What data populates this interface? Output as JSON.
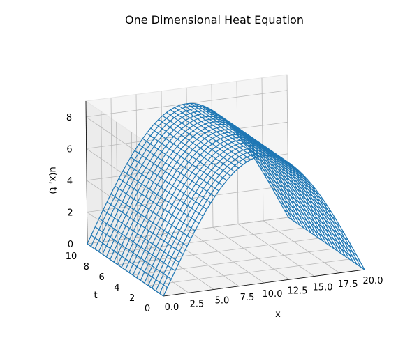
{
  "chart_data": {
    "type": "wireframe",
    "title": "One Dimensional Heat Equation",
    "xlabel": "x",
    "ylabel": "t",
    "zlabel": "u(x, t)",
    "xlim": [
      0,
      20
    ],
    "ylim": [
      0,
      10
    ],
    "zlim": [
      0,
      9
    ],
    "xticks": [
      "0.0",
      "2.5",
      "5.0",
      "7.5",
      "10.0",
      "12.5",
      "15.0",
      "17.5",
      "20.0"
    ],
    "yticks": [
      "0",
      "2",
      "4",
      "6",
      "8",
      "10"
    ],
    "zticks": [
      "0",
      "2",
      "4",
      "6",
      "8"
    ],
    "grid": true,
    "color": "#1f77b4",
    "surface": {
      "description_formula": "u(x,t) = 8 * sin(pi * x / 20)",
      "x": [
        0,
        0.4,
        0.8,
        1.2,
        1.6,
        2.0,
        2.4,
        2.8,
        3.2,
        3.6,
        4.0,
        4.4,
        4.8,
        5.2,
        5.6,
        6.0,
        6.4,
        6.8,
        7.2,
        7.6,
        8.0,
        8.4,
        8.8,
        9.2,
        9.6,
        10.0,
        10.4,
        10.8,
        11.2,
        11.6,
        12.0,
        12.4,
        12.8,
        13.2,
        13.6,
        14.0,
        14.4,
        14.8,
        15.2,
        15.6,
        16.0,
        16.4,
        16.8,
        17.2,
        17.6,
        18.0,
        18.4,
        18.8,
        19.2,
        19.6,
        20.0
      ],
      "t": [
        0,
        0.5,
        1.0,
        1.5,
        2.0,
        2.5,
        3.0,
        3.5,
        4.0,
        4.5,
        5.0,
        5.5,
        6.0,
        6.5,
        7.0,
        7.5,
        8.0,
        8.5,
        9.0,
        9.5,
        10.0
      ],
      "amplitude": 8
    }
  }
}
